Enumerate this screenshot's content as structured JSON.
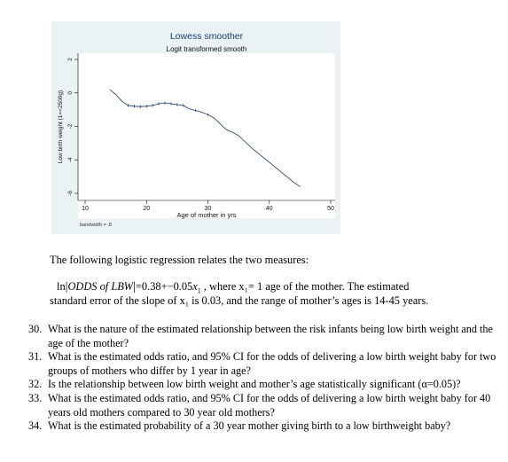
{
  "chart_data": {
    "type": "line",
    "title": "Lowess smoother",
    "subtitle": "Logit transformed smooth",
    "xlabel": "Age of mother in yrs",
    "ylabel": "Low birth weight (1=<2500g)",
    "xlim": [
      10,
      50
    ],
    "ylim": [
      -6,
      2
    ],
    "x_ticks": [
      10,
      20,
      30,
      40,
      50
    ],
    "y_ticks": [
      2,
      0,
      -2,
      -4,
      -6
    ],
    "note": "bandwidth = .8",
    "grid": false,
    "series": [
      {
        "x": [
          14,
          15,
          16,
          17,
          18,
          19,
          20,
          21,
          22,
          23,
          24,
          25,
          26,
          27,
          28,
          29,
          30,
          31,
          32,
          33,
          34,
          35,
          36,
          37,
          38,
          39,
          40,
          41,
          42,
          43,
          44,
          45
        ],
        "y": [
          0.2,
          -0.1,
          -0.5,
          -0.75,
          -0.8,
          -0.82,
          -0.8,
          -0.75,
          -0.65,
          -0.6,
          -0.65,
          -0.7,
          -0.75,
          -0.95,
          -1.05,
          -1.15,
          -1.3,
          -1.5,
          -1.85,
          -2.2,
          -2.35,
          -2.55,
          -2.9,
          -3.25,
          -3.55,
          -3.85,
          -4.15,
          -4.45,
          -4.75,
          -5.05,
          -5.35,
          -5.6
        ]
      }
    ],
    "markers_x": [
      17,
      18,
      19,
      20,
      21,
      22,
      23,
      24,
      25,
      26,
      28,
      30
    ]
  },
  "doc": {
    "intro": "The following logistic regression relates the two measures:",
    "eq": {
      "ln": "ln",
      "odds_term": "ODDS of LBW",
      "rhs": "=0.38+−0.05",
      "xvar": "x",
      "xsub": "1",
      "trail": " , where x₁= 1 age of the mother.  The estimated"
    },
    "eq_cont": "standard error of the slope of x₁ is 0.03, and the range of mother’s ages is 14-45 years.",
    "questions": [
      {
        "num": "30.",
        "text": "What is the nature of the estimated relationship between the risk infants being low birth weight and the age of the mother?"
      },
      {
        "num": "31.",
        "text": "What is the estimated odds ratio, and 95% CI for the odds of delivering a low birth weight baby for two groups of mothers who differ by 1 year in age?"
      },
      {
        "num": "32.",
        "text": "Is the relationship between low birth weight and mother’s age statistically significant (α=0.05)?"
      },
      {
        "num": "33.",
        "text": "What is the estimated odds ratio, and 95% CI for the odds of delivering a low birth weight baby for 40 years old mothers compared to 30 year old mothers?"
      },
      {
        "num": "34.",
        "text": "What is the estimated probability of a 30 year mother giving birth to a low birthweight baby?"
      }
    ]
  }
}
